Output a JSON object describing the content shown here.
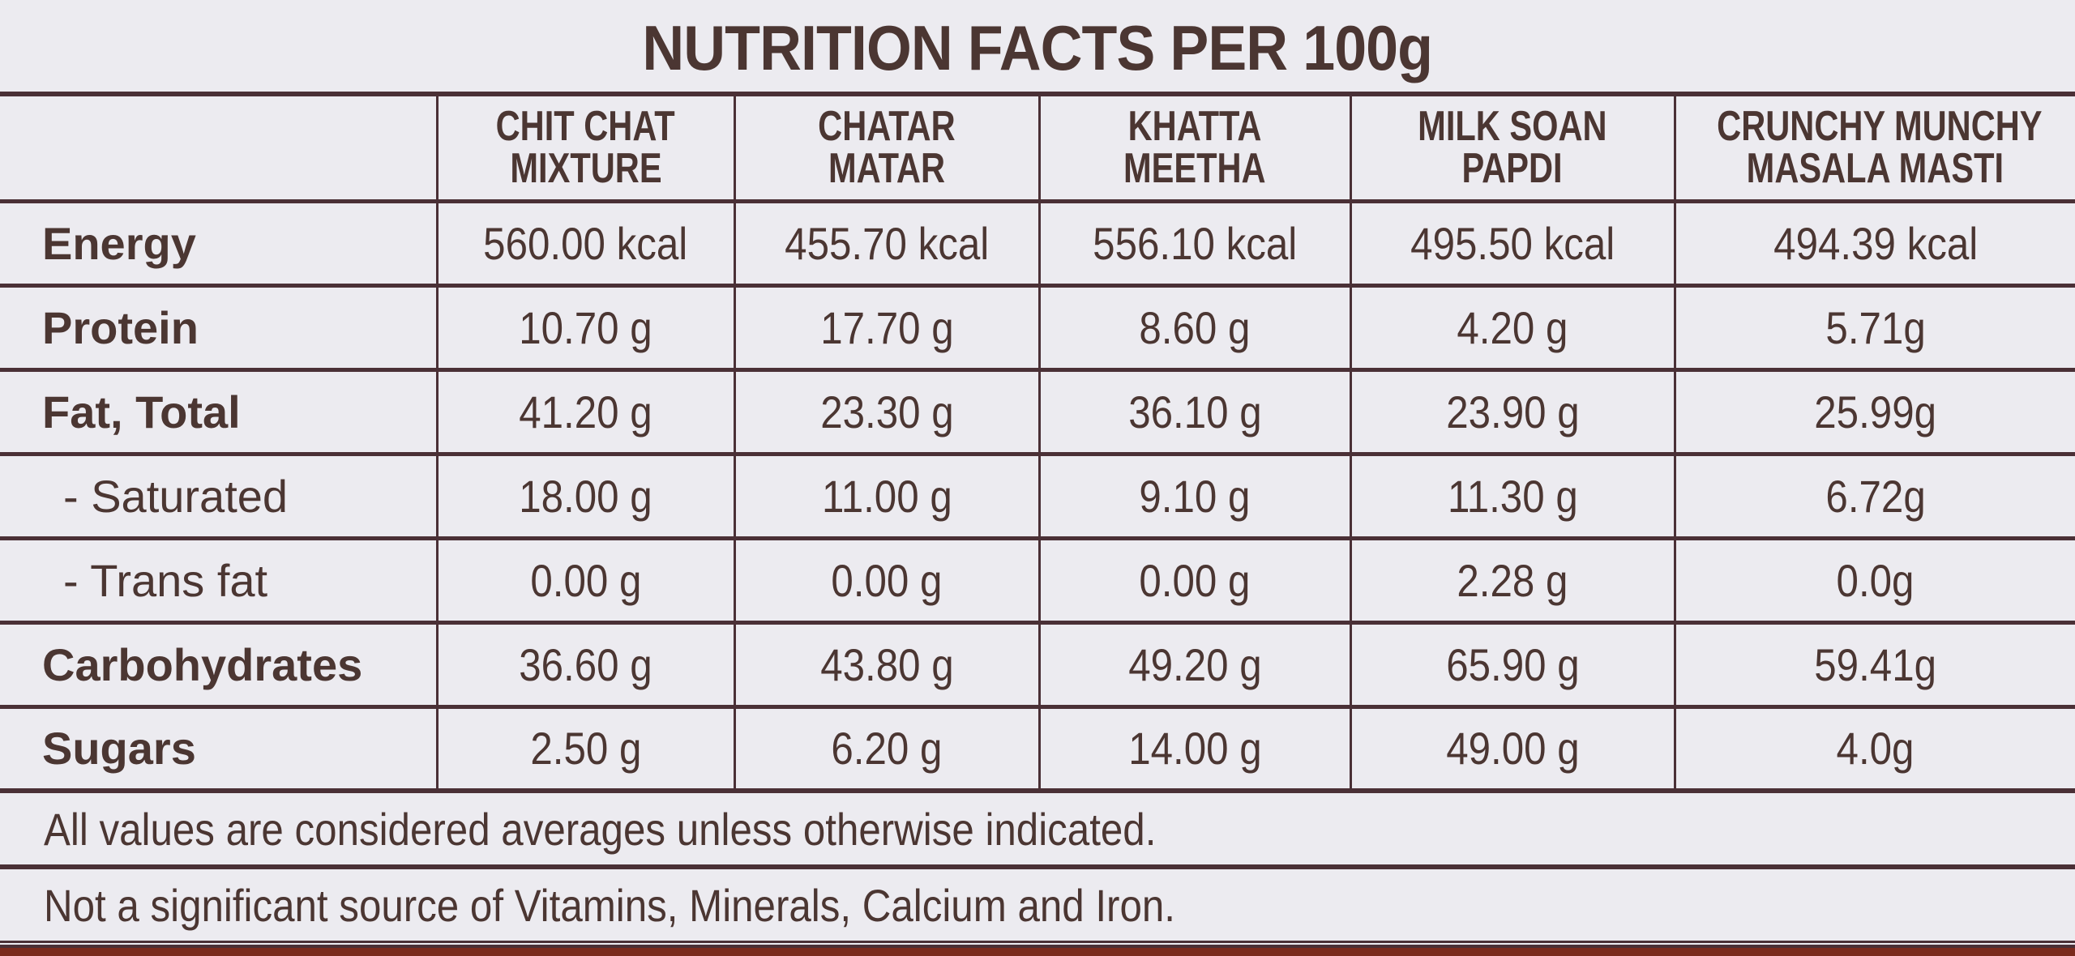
{
  "title": "NUTRITION FACTS PER 100g",
  "columns": [
    [
      "CHIT CHAT",
      "MIXTURE"
    ],
    [
      "CHATAR",
      "MATAR"
    ],
    [
      "KHATTA",
      "MEETHA"
    ],
    [
      "MILK SOAN",
      "PAPDI"
    ],
    [
      "CRUNCHY MUNCHY",
      "MASALA MASTI"
    ]
  ],
  "rows": [
    {
      "label": "Energy",
      "values": [
        "560.00 kcal",
        "455.70 kcal",
        "556.10 kcal",
        "495.50 kcal",
        "494.39 kcal"
      ]
    },
    {
      "label": "Protein",
      "values": [
        "10.70 g",
        "17.70 g",
        "8.60 g",
        "4.20 g",
        "5.71g"
      ]
    },
    {
      "label": "Fat, Total",
      "values": [
        "41.20 g",
        "23.30 g",
        "36.10 g",
        "23.90 g",
        "25.99g"
      ]
    },
    {
      "label": "- Saturated",
      "values": [
        "18.00 g",
        "11.00 g",
        "9.10 g",
        "11.30 g",
        "6.72g"
      ]
    },
    {
      "label": "- Trans fat",
      "values": [
        "0.00 g",
        "0.00 g",
        "0.00 g",
        "2.28 g",
        "0.0g"
      ]
    },
    {
      "label": "Carbohydrates",
      "values": [
        "36.60 g",
        "43.80 g",
        "49.20 g",
        "65.90 g",
        "59.41g"
      ]
    },
    {
      "label": "Sugars",
      "values": [
        "2.50 g",
        "6.20 g",
        "14.00 g",
        "49.00 g",
        "4.0g"
      ]
    }
  ],
  "notes": [
    "All values are considered averages unless otherwise indicated.",
    "Not a significant source of Vitamins, Minerals, Calcium and Iron."
  ],
  "colors": {
    "text": "#4b3632",
    "lines": "#4a3036",
    "background": "#ecebf0",
    "box_edge": "#7a2a1c"
  }
}
